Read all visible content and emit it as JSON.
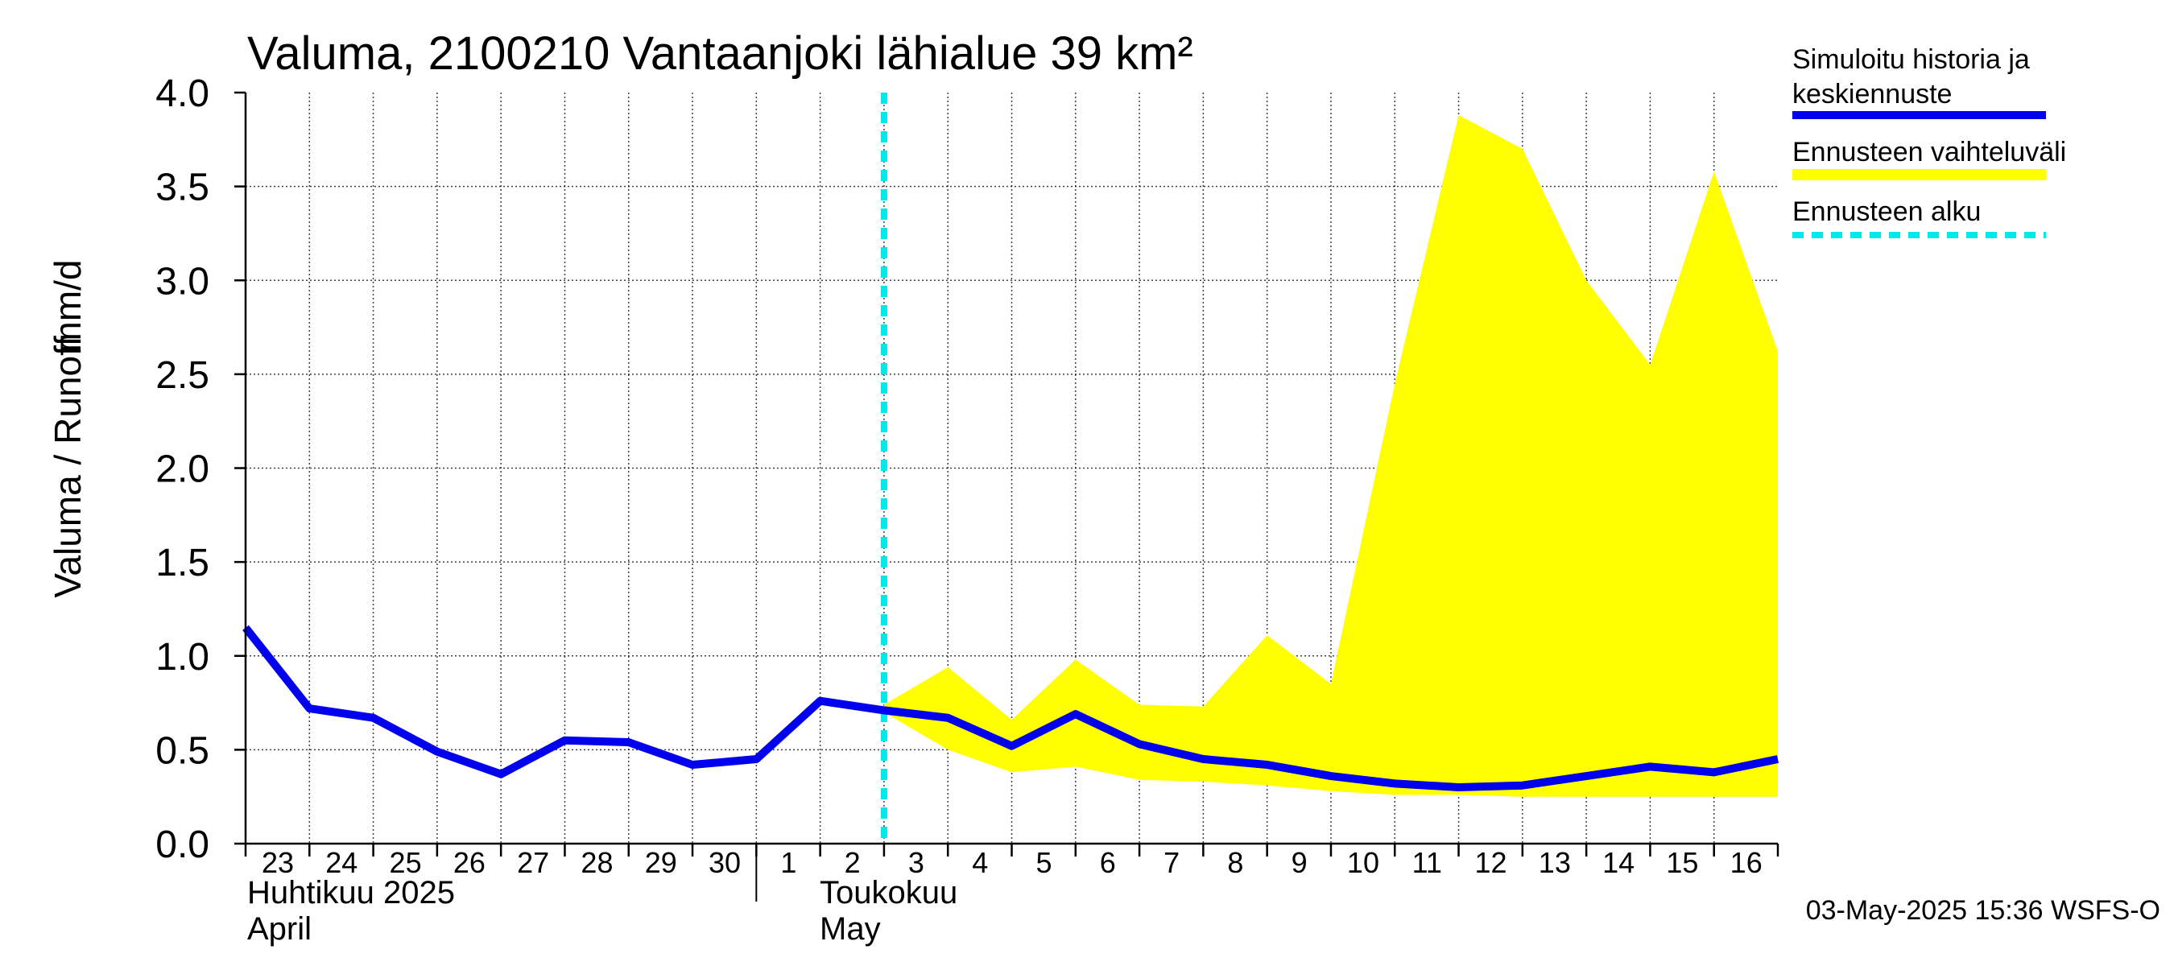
{
  "chart_data": {
    "type": "line",
    "title": "Valuma, 2100210 Vantaanjoki lähialue 39 km²",
    "ylabel_left": "Valuma / Runoff",
    "ylabel_right": "mm/d",
    "ylim": [
      0,
      4
    ],
    "yticks": [
      "0.0",
      "0.5",
      "1.0",
      "1.5",
      "2.0",
      "2.5",
      "3.0",
      "3.5",
      "4.0"
    ],
    "x_range": [
      "2025-04-23",
      "2025-05-17"
    ],
    "xtick_labels": [
      "23",
      "24",
      "25",
      "26",
      "27",
      "28",
      "29",
      "30",
      "1",
      "2",
      "3",
      "4",
      "5",
      "6",
      "7",
      "8",
      "9",
      "10",
      "11",
      "12",
      "13",
      "14",
      "15",
      "16"
    ],
    "month_labels": {
      "april_fi": "Huhtikuu  2025",
      "april_en": "April",
      "may_fi": "Toukokuu",
      "may_en": "May"
    },
    "grid": true,
    "forecast_start": "2025-05-03",
    "series": [
      {
        "name": "Simuloitu historia ja keskiennuste",
        "color": "#0000ee",
        "x": [
          "2025-04-23",
          "2025-04-24",
          "2025-04-25",
          "2025-04-26",
          "2025-04-27",
          "2025-04-28",
          "2025-04-29",
          "2025-04-30",
          "2025-05-01",
          "2025-05-02",
          "2025-05-03",
          "2025-05-04",
          "2025-05-05",
          "2025-05-06",
          "2025-05-07",
          "2025-05-08",
          "2025-05-09",
          "2025-05-10",
          "2025-05-11",
          "2025-05-12",
          "2025-05-13",
          "2025-05-14",
          "2025-05-15",
          "2025-05-16",
          "2025-05-17"
        ],
        "y": [
          1.15,
          0.72,
          0.67,
          0.49,
          0.37,
          0.55,
          0.54,
          0.42,
          0.45,
          0.76,
          0.71,
          0.67,
          0.52,
          0.69,
          0.53,
          0.45,
          0.42,
          0.36,
          0.32,
          0.3,
          0.31,
          0.36,
          0.41,
          0.38,
          0.45
        ]
      }
    ],
    "band": {
      "name": "Ennusteen vaihteluväli",
      "color": "#ffff00",
      "x": [
        "2025-05-03",
        "2025-05-04",
        "2025-05-05",
        "2025-05-06",
        "2025-05-07",
        "2025-05-08",
        "2025-05-09",
        "2025-05-10",
        "2025-05-11",
        "2025-05-12",
        "2025-05-13",
        "2025-05-14",
        "2025-05-15",
        "2025-05-16",
        "2025-05-17"
      ],
      "upper": [
        0.74,
        0.94,
        0.66,
        0.98,
        0.74,
        0.73,
        1.11,
        0.85,
        2.45,
        3.88,
        3.7,
        3.0,
        2.55,
        3.58,
        2.62
      ],
      "lower": [
        0.7,
        0.5,
        0.38,
        0.41,
        0.34,
        0.33,
        0.31,
        0.28,
        0.26,
        0.26,
        0.25,
        0.25,
        0.25,
        0.25,
        0.25
      ]
    },
    "legend": {
      "placement": "right",
      "items": [
        {
          "label_line1": "Simuloitu historia ja",
          "label_line2": "keskiennuste",
          "color": "#0000ee",
          "style": "solid"
        },
        {
          "label_line1": "Ennusteen vaihteluväli",
          "color": "#ffff00",
          "style": "band"
        },
        {
          "label_line1": "Ennusteen alku",
          "color": "#00e8e8",
          "style": "dashed"
        }
      ]
    },
    "footer": "03-May-2025 15:36 WSFS-O"
  }
}
